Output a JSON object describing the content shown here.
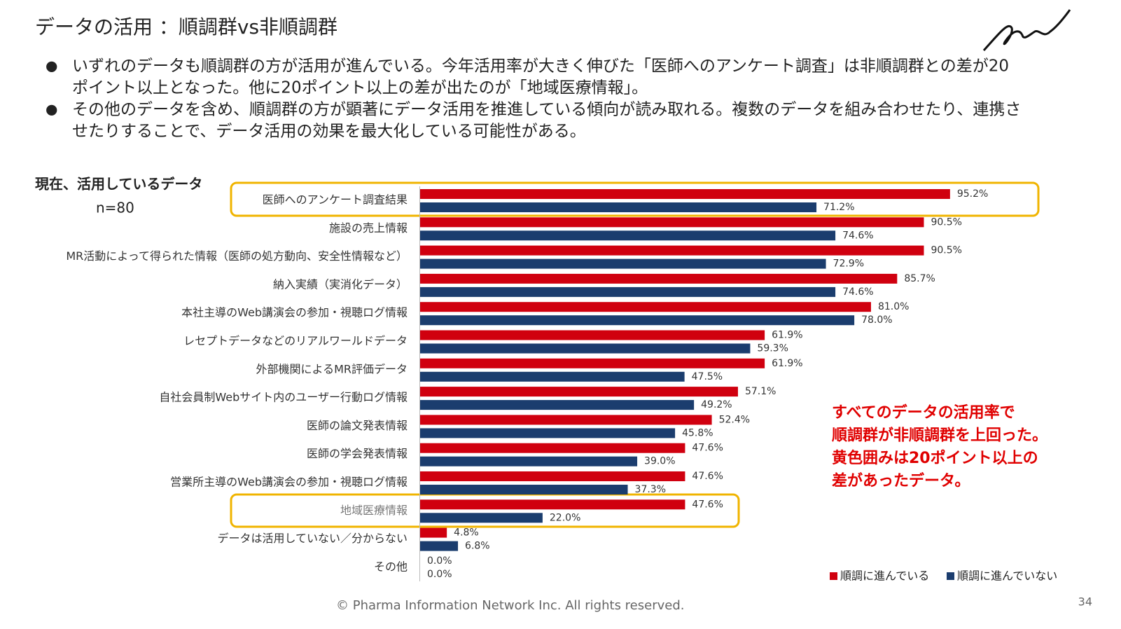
{
  "header": {
    "title": "データの活用 ：順調群vs非順調群"
  },
  "bullets": [
    [
      "いずれのデータも順調群の方が活用が進んでいる。今年活用率が大きく伸びた「医師へのアンケート調査」は非順調群との差が20",
      "ポイント以上となった。他に20ポイント以上の差が出たのが「地域医療情報」。"
    ],
    [
      "その他のデータを含め、順調群の方が顕著にデータ活用を推進している傾向が読み取れる。複数のデータを組み合わせたり、連携さ",
      "せたりすることで、データ活用の効果を最大化している可能性がある。"
    ]
  ],
  "bullet_symbol": "●",
  "chart_data": {
    "type": "hbar",
    "title": "現在、活用しているデータ",
    "subtitle": "n=80",
    "categories": [
      "医師へのアンケート調査結果",
      "施設の売上情報",
      "MR活動によって得られた情報（医師の処方動向、安全性情報など）",
      "納入実績（実消化データ）",
      "本社主導のWeb講演会の参加・視聴ログ情報",
      "レセプトデータなどのリアルワールドデータ",
      "外部機関によるMR評価データ",
      "自社会員制Webサイト内のユーザー行動ログ情報",
      "医師の論文発表情報",
      "医師の学会発表情報",
      "営業所主導のWeb講演会の参加・視聴ログ情報",
      "地域医療情報",
      "データは活用していない／分からない",
      "その他"
    ],
    "series": [
      {
        "name": "順調に進んでいる",
        "color": "#d0000f",
        "values": [
          95.2,
          90.5,
          90.5,
          85.7,
          81.0,
          61.9,
          61.9,
          57.1,
          52.4,
          47.6,
          47.6,
          47.6,
          4.8,
          0.0
        ],
        "value_labels": [
          "95.2%",
          "90.5%",
          "90.5%",
          "85.7%",
          "81.0%",
          "61.9%",
          "61.9%",
          "57.1%",
          "52.4%",
          "47.6%",
          "47.6%",
          "47.6%",
          "4.8%",
          "0.0%"
        ]
      },
      {
        "name": "順調に進んでいない",
        "color": "#1b3d6e",
        "values": [
          71.2,
          74.6,
          72.9,
          74.6,
          78.0,
          59.3,
          47.5,
          49.2,
          45.8,
          39.0,
          37.3,
          22.0,
          6.8,
          0.0
        ],
        "value_labels": [
          "71.2%",
          "74.6%",
          "72.9%",
          "74.6%",
          "78.0%",
          "59.3%",
          "47.5%",
          "49.2%",
          "45.8%",
          "39.0%",
          "37.3%",
          "22.0%",
          "6.8%",
          "0.0%"
        ]
      }
    ],
    "annotation": [
      "すべてのデータの活用率で",
      "順調群が非順調群を上回った。",
      "黄色囲みは20ポイント以上の",
      "差があったデータ。"
    ],
    "legend": "bottom-right"
  },
  "footer": "© Pharma Information Network Inc.  All rights reserved.",
  "page_number": "34"
}
